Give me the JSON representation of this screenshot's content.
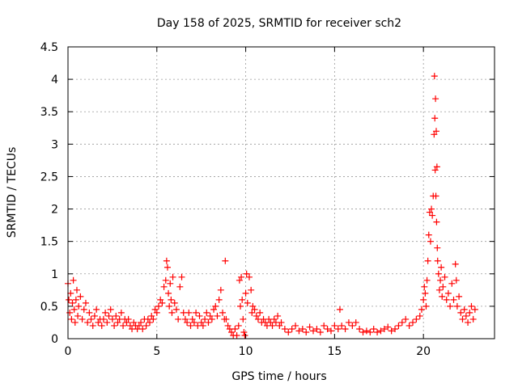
{
  "chart_data": {
    "type": "scatter",
    "title": "Day 158 of 2025, SRMTID for receiver sch2",
    "xlabel": "GPS time / hours",
    "ylabel": "SRMTID / TECUs",
    "xlim": [
      0,
      24
    ],
    "ylim": [
      0,
      4.5
    ],
    "xticks": [
      0,
      5,
      10,
      15,
      20
    ],
    "xtick_labels": [
      "0",
      "5",
      "10",
      "15",
      "20"
    ],
    "yticks": [
      0,
      0.5,
      1,
      1.5,
      2,
      2.5,
      3,
      3.5,
      4,
      4.5
    ],
    "ytick_labels": [
      "0",
      "0.5",
      "1",
      "1.5",
      "2",
      "2.5",
      "3",
      "3.5",
      "4",
      "4.5"
    ],
    "grid": true,
    "marker": "+",
    "series": [
      {
        "name": "SRMTID",
        "color": "#ff0000",
        "points": [
          [
            0.0,
            0.85
          ],
          [
            0.05,
            0.6
          ],
          [
            0.1,
            0.4
          ],
          [
            0.15,
            0.7
          ],
          [
            0.2,
            0.3
          ],
          [
            0.25,
            0.55
          ],
          [
            0.3,
            0.9
          ],
          [
            0.35,
            0.45
          ],
          [
            0.4,
            0.25
          ],
          [
            0.45,
            0.6
          ],
          [
            0.5,
            0.75
          ],
          [
            0.55,
            0.35
          ],
          [
            0.6,
            0.5
          ],
          [
            0.7,
            0.65
          ],
          [
            0.8,
            0.3
          ],
          [
            0.9,
            0.45
          ],
          [
            1.0,
            0.55
          ],
          [
            1.1,
            0.25
          ],
          [
            1.2,
            0.4
          ],
          [
            1.3,
            0.3
          ],
          [
            1.4,
            0.2
          ],
          [
            1.5,
            0.35
          ],
          [
            1.6,
            0.45
          ],
          [
            1.7,
            0.25
          ],
          [
            1.8,
            0.3
          ],
          [
            1.9,
            0.2
          ],
          [
            2.0,
            0.3
          ],
          [
            2.1,
            0.4
          ],
          [
            2.2,
            0.25
          ],
          [
            2.3,
            0.35
          ],
          [
            2.4,
            0.45
          ],
          [
            2.5,
            0.3
          ],
          [
            2.6,
            0.2
          ],
          [
            2.7,
            0.35
          ],
          [
            2.8,
            0.25
          ],
          [
            2.9,
            0.3
          ],
          [
            3.0,
            0.4
          ],
          [
            3.1,
            0.2
          ],
          [
            3.2,
            0.3
          ],
          [
            3.3,
            0.25
          ],
          [
            3.4,
            0.3
          ],
          [
            3.5,
            0.2
          ],
          [
            3.6,
            0.15
          ],
          [
            3.7,
            0.25
          ],
          [
            3.8,
            0.2
          ],
          [
            3.9,
            0.15
          ],
          [
            4.0,
            0.2
          ],
          [
            4.1,
            0.25
          ],
          [
            4.2,
            0.15
          ],
          [
            4.3,
            0.3
          ],
          [
            4.4,
            0.2
          ],
          [
            4.5,
            0.3
          ],
          [
            4.6,
            0.25
          ],
          [
            4.7,
            0.35
          ],
          [
            4.8,
            0.3
          ],
          [
            4.9,
            0.45
          ],
          [
            5.0,
            0.4
          ],
          [
            5.1,
            0.5
          ],
          [
            5.2,
            0.6
          ],
          [
            5.3,
            0.55
          ],
          [
            5.4,
            0.8
          ],
          [
            5.5,
            0.9
          ],
          [
            5.55,
            1.2
          ],
          [
            5.6,
            1.1
          ],
          [
            5.65,
            0.7
          ],
          [
            5.7,
            0.5
          ],
          [
            5.75,
            0.85
          ],
          [
            5.8,
            0.6
          ],
          [
            5.85,
            0.4
          ],
          [
            5.9,
            0.95
          ],
          [
            6.0,
            0.55
          ],
          [
            6.1,
            0.45
          ],
          [
            6.2,
            0.3
          ],
          [
            6.3,
            0.8
          ],
          [
            6.4,
            0.95
          ],
          [
            6.5,
            0.4
          ],
          [
            6.6,
            0.3
          ],
          [
            6.7,
            0.25
          ],
          [
            6.8,
            0.4
          ],
          [
            6.9,
            0.2
          ],
          [
            7.0,
            0.3
          ],
          [
            7.1,
            0.25
          ],
          [
            7.2,
            0.4
          ],
          [
            7.3,
            0.2
          ],
          [
            7.4,
            0.35
          ],
          [
            7.5,
            0.25
          ],
          [
            7.6,
            0.2
          ],
          [
            7.7,
            0.3
          ],
          [
            7.8,
            0.4
          ],
          [
            7.9,
            0.25
          ],
          [
            8.0,
            0.35
          ],
          [
            8.1,
            0.3
          ],
          [
            8.2,
            0.45
          ],
          [
            8.3,
            0.5
          ],
          [
            8.4,
            0.35
          ],
          [
            8.5,
            0.6
          ],
          [
            8.6,
            0.75
          ],
          [
            8.7,
            0.4
          ],
          [
            8.8,
            0.3
          ],
          [
            8.85,
            1.2
          ],
          [
            8.9,
            0.3
          ],
          [
            9.0,
            0.2
          ],
          [
            9.1,
            0.15
          ],
          [
            9.2,
            0.1
          ],
          [
            9.3,
            0.05
          ],
          [
            9.4,
            0.15
          ],
          [
            9.5,
            0.05
          ],
          [
            9.6,
            0.2
          ],
          [
            9.65,
            0.9
          ],
          [
            9.7,
            0.5
          ],
          [
            9.75,
            0.95
          ],
          [
            9.8,
            0.6
          ],
          [
            9.85,
            0.3
          ],
          [
            9.9,
            0.1
          ],
          [
            9.95,
            0.05
          ],
          [
            10.0,
            0.7
          ],
          [
            10.05,
            1.0
          ],
          [
            10.1,
            0.55
          ],
          [
            10.2,
            0.95
          ],
          [
            10.3,
            0.75
          ],
          [
            10.35,
            0.4
          ],
          [
            10.4,
            0.5
          ],
          [
            10.5,
            0.45
          ],
          [
            10.6,
            0.35
          ],
          [
            10.7,
            0.3
          ],
          [
            10.8,
            0.4
          ],
          [
            10.9,
            0.25
          ],
          [
            11.0,
            0.3
          ],
          [
            11.1,
            0.25
          ],
          [
            11.2,
            0.2
          ],
          [
            11.3,
            0.3
          ],
          [
            11.4,
            0.25
          ],
          [
            11.5,
            0.2
          ],
          [
            11.6,
            0.3
          ],
          [
            11.7,
            0.25
          ],
          [
            11.8,
            0.35
          ],
          [
            11.9,
            0.2
          ],
          [
            12.0,
            0.25
          ],
          [
            12.2,
            0.15
          ],
          [
            12.4,
            0.1
          ],
          [
            12.6,
            0.15
          ],
          [
            12.8,
            0.2
          ],
          [
            13.0,
            0.12
          ],
          [
            13.2,
            0.15
          ],
          [
            13.4,
            0.1
          ],
          [
            13.6,
            0.18
          ],
          [
            13.8,
            0.12
          ],
          [
            14.0,
            0.15
          ],
          [
            14.2,
            0.1
          ],
          [
            14.4,
            0.2
          ],
          [
            14.6,
            0.15
          ],
          [
            14.8,
            0.12
          ],
          [
            15.0,
            0.2
          ],
          [
            15.2,
            0.15
          ],
          [
            15.3,
            0.45
          ],
          [
            15.4,
            0.2
          ],
          [
            15.6,
            0.15
          ],
          [
            15.8,
            0.25
          ],
          [
            16.0,
            0.2
          ],
          [
            16.2,
            0.25
          ],
          [
            16.4,
            0.15
          ],
          [
            16.6,
            0.1
          ],
          [
            16.8,
            0.12
          ],
          [
            17.0,
            0.1
          ],
          [
            17.2,
            0.15
          ],
          [
            17.4,
            0.1
          ],
          [
            17.6,
            0.12
          ],
          [
            17.8,
            0.15
          ],
          [
            18.0,
            0.18
          ],
          [
            18.2,
            0.12
          ],
          [
            18.4,
            0.15
          ],
          [
            18.6,
            0.2
          ],
          [
            18.8,
            0.25
          ],
          [
            19.0,
            0.3
          ],
          [
            19.2,
            0.2
          ],
          [
            19.4,
            0.25
          ],
          [
            19.6,
            0.3
          ],
          [
            19.8,
            0.35
          ],
          [
            19.9,
            0.45
          ],
          [
            20.0,
            0.6
          ],
          [
            20.05,
            0.8
          ],
          [
            20.1,
            0.7
          ],
          [
            20.15,
            0.5
          ],
          [
            20.2,
            0.9
          ],
          [
            20.25,
            1.2
          ],
          [
            20.3,
            1.6
          ],
          [
            20.35,
            1.95
          ],
          [
            20.4,
            1.5
          ],
          [
            20.45,
            2.0
          ],
          [
            20.5,
            1.9
          ],
          [
            20.55,
            2.2
          ],
          [
            20.6,
            3.15
          ],
          [
            20.62,
            4.05
          ],
          [
            20.64,
            3.4
          ],
          [
            20.66,
            2.6
          ],
          [
            20.68,
            3.7
          ],
          [
            20.7,
            2.2
          ],
          [
            20.72,
            3.2
          ],
          [
            20.74,
            1.8
          ],
          [
            20.76,
            2.65
          ],
          [
            20.78,
            1.4
          ],
          [
            20.8,
            1.2
          ],
          [
            20.85,
            1.0
          ],
          [
            20.9,
            0.75
          ],
          [
            20.95,
            0.9
          ],
          [
            21.0,
            1.1
          ],
          [
            21.05,
            0.65
          ],
          [
            21.1,
            0.8
          ],
          [
            21.2,
            0.95
          ],
          [
            21.3,
            0.6
          ],
          [
            21.4,
            0.7
          ],
          [
            21.5,
            0.5
          ],
          [
            21.6,
            0.85
          ],
          [
            21.7,
            0.6
          ],
          [
            21.8,
            1.15
          ],
          [
            21.85,
            0.9
          ],
          [
            21.9,
            0.5
          ],
          [
            22.0,
            0.65
          ],
          [
            22.1,
            0.4
          ],
          [
            22.2,
            0.3
          ],
          [
            22.3,
            0.45
          ],
          [
            22.4,
            0.35
          ],
          [
            22.5,
            0.25
          ],
          [
            22.6,
            0.4
          ],
          [
            22.7,
            0.5
          ],
          [
            22.8,
            0.3
          ],
          [
            22.9,
            0.45
          ]
        ]
      }
    ]
  }
}
